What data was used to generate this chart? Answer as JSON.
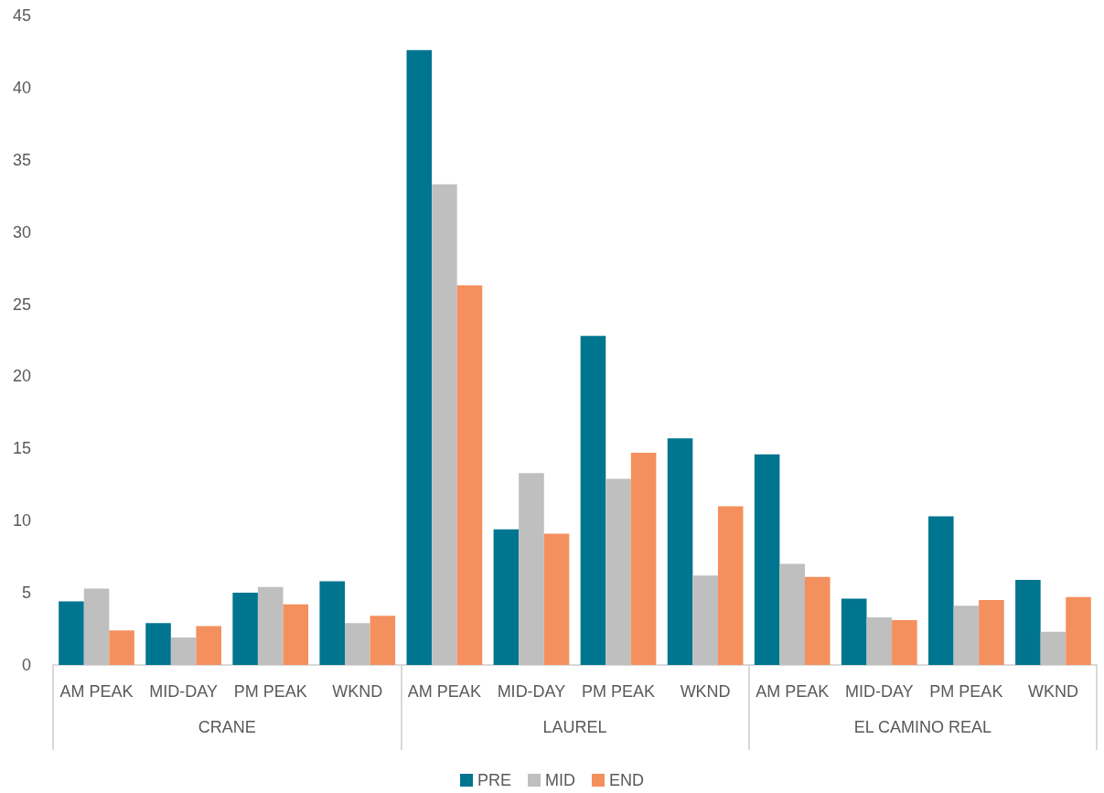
{
  "chart_data": {
    "type": "bar",
    "categories": [
      "AM PEAK",
      "MID-DAY",
      "PM PEAK",
      "WKND",
      "AM PEAK",
      "MID-DAY",
      "PM PEAK",
      "WKND",
      "AM PEAK",
      "MID-DAY",
      "PM PEAK",
      "WKND"
    ],
    "annotations": [
      "CRANE",
      "LAUREL",
      "EL CAMINO REAL"
    ],
    "series": [
      {
        "name": "PRE",
        "color": "#00758f",
        "values": [
          4.4,
          2.9,
          5.0,
          5.8,
          42.6,
          9.4,
          22.8,
          15.7,
          14.6,
          4.6,
          10.3,
          5.9
        ]
      },
      {
        "name": "MID",
        "color": "#bfbfbf",
        "values": [
          5.3,
          1.9,
          5.4,
          2.9,
          33.3,
          13.3,
          12.9,
          6.2,
          7.0,
          3.3,
          4.1,
          2.3
        ]
      },
      {
        "name": "END",
        "color": "#f4905e",
        "values": [
          2.4,
          2.7,
          4.2,
          3.4,
          26.3,
          9.1,
          14.7,
          11.0,
          6.1,
          3.1,
          4.5,
          4.7
        ]
      }
    ],
    "ylim": [
      0,
      45
    ],
    "yticks": [
      0,
      5,
      10,
      15,
      20,
      25,
      30,
      35,
      40,
      45
    ],
    "grid": false,
    "legend": "bottom"
  }
}
